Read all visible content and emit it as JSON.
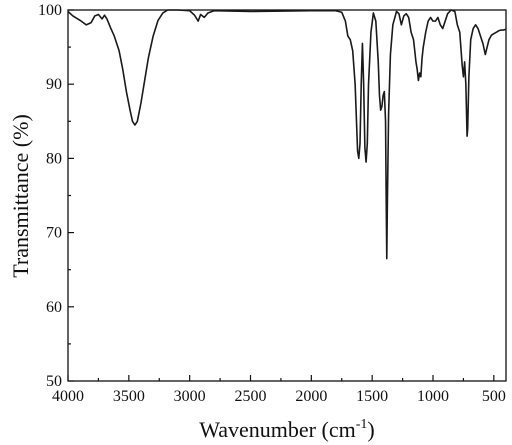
{
  "chart_data": {
    "type": "line",
    "xlabel": "Wavenumber (cm",
    "xlabel_sup": "-1",
    "xlabel_tail": ")",
    "ylabel": "Transmittance (%)",
    "xlim": [
      4000,
      400
    ],
    "ylim": [
      50,
      100
    ],
    "x_reversed": true,
    "x_ticks": [
      4000,
      3500,
      3000,
      2500,
      2000,
      1500,
      1000,
      500
    ],
    "y_ticks": [
      50,
      60,
      70,
      80,
      90,
      100
    ],
    "grid": false,
    "line_color": "#1a1a1a",
    "series": [
      {
        "points": [
          [
            4000,
            99.8
          ],
          [
            3960,
            99.2
          ],
          [
            3900,
            98.6
          ],
          [
            3850,
            98.0
          ],
          [
            3810,
            98.3
          ],
          [
            3780,
            99.2
          ],
          [
            3750,
            99.4
          ],
          [
            3720,
            98.8
          ],
          [
            3700,
            99.3
          ],
          [
            3680,
            98.8
          ],
          [
            3650,
            97.6
          ],
          [
            3620,
            96.5
          ],
          [
            3580,
            94.5
          ],
          [
            3550,
            92.0
          ],
          [
            3520,
            89.0
          ],
          [
            3490,
            86.5
          ],
          [
            3470,
            85.0
          ],
          [
            3450,
            84.5
          ],
          [
            3430,
            85.0
          ],
          [
            3400,
            87.5
          ],
          [
            3370,
            90.5
          ],
          [
            3340,
            93.5
          ],
          [
            3300,
            96.5
          ],
          [
            3260,
            98.6
          ],
          [
            3220,
            99.6
          ],
          [
            3180,
            100.0
          ],
          [
            3100,
            100.0
          ],
          [
            3000,
            99.9
          ],
          [
            2960,
            99.3
          ],
          [
            2930,
            98.5
          ],
          [
            2910,
            99.4
          ],
          [
            2880,
            99.0
          ],
          [
            2850,
            99.6
          ],
          [
            2800,
            99.9
          ],
          [
            2500,
            99.8
          ],
          [
            2000,
            99.9
          ],
          [
            1800,
            99.9
          ],
          [
            1750,
            99.7
          ],
          [
            1720,
            98.5
          ],
          [
            1700,
            96.5
          ],
          [
            1680,
            96.0
          ],
          [
            1660,
            94.5
          ],
          [
            1640,
            90.0
          ],
          [
            1620,
            81.0
          ],
          [
            1610,
            80.0
          ],
          [
            1600,
            82.0
          ],
          [
            1590,
            90.0
          ],
          [
            1580,
            95.5
          ],
          [
            1570,
            90.0
          ],
          [
            1560,
            81.5
          ],
          [
            1550,
            79.5
          ],
          [
            1540,
            82.0
          ],
          [
            1530,
            90.0
          ],
          [
            1510,
            97.0
          ],
          [
            1490,
            99.6
          ],
          [
            1470,
            98.5
          ],
          [
            1450,
            93.0
          ],
          [
            1440,
            88.5
          ],
          [
            1430,
            86.5
          ],
          [
            1420,
            87.0
          ],
          [
            1410,
            88.5
          ],
          [
            1400,
            89.0
          ],
          [
            1390,
            85.0
          ],
          [
            1385,
            75.0
          ],
          [
            1380,
            66.5
          ],
          [
            1375,
            74.0
          ],
          [
            1365,
            86.0
          ],
          [
            1350,
            94.0
          ],
          [
            1330,
            98.0
          ],
          [
            1300,
            99.8
          ],
          [
            1280,
            99.5
          ],
          [
            1260,
            98.0
          ],
          [
            1240,
            99.2
          ],
          [
            1220,
            99.5
          ],
          [
            1200,
            99.0
          ],
          [
            1180,
            97.0
          ],
          [
            1160,
            96.0
          ],
          [
            1140,
            93.0
          ],
          [
            1130,
            92.0
          ],
          [
            1120,
            90.5
          ],
          [
            1110,
            91.5
          ],
          [
            1100,
            91.0
          ],
          [
            1090,
            93.5
          ],
          [
            1080,
            95.0
          ],
          [
            1060,
            97.0
          ],
          [
            1040,
            98.5
          ],
          [
            1020,
            99.0
          ],
          [
            1000,
            98.5
          ],
          [
            980,
            98.5
          ],
          [
            960,
            99.0
          ],
          [
            940,
            98.0
          ],
          [
            920,
            97.5
          ],
          [
            900,
            98.5
          ],
          [
            880,
            99.5
          ],
          [
            850,
            100.0
          ],
          [
            820,
            99.8
          ],
          [
            800,
            98.0
          ],
          [
            780,
            97.0
          ],
          [
            760,
            92.5
          ],
          [
            750,
            91.0
          ],
          [
            740,
            93.0
          ],
          [
            730,
            90.0
          ],
          [
            720,
            83.0
          ],
          [
            715,
            84.0
          ],
          [
            705,
            91.0
          ],
          [
            690,
            96.0
          ],
          [
            670,
            97.5
          ],
          [
            650,
            98.0
          ],
          [
            630,
            97.5
          ],
          [
            610,
            96.5
          ],
          [
            590,
            95.5
          ],
          [
            570,
            94.0
          ],
          [
            555,
            95.0
          ],
          [
            540,
            96.0
          ],
          [
            520,
            96.6
          ],
          [
            500,
            96.8
          ],
          [
            480,
            97.0
          ],
          [
            460,
            97.2
          ],
          [
            440,
            97.3
          ],
          [
            420,
            97.3
          ],
          [
            400,
            97.4
          ]
        ]
      }
    ]
  }
}
